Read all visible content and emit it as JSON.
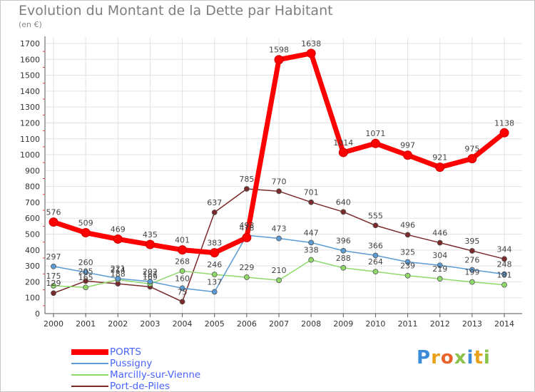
{
  "chart_data": {
    "type": "line",
    "title": "Evolution du Montant de la Dette par Habitant",
    "subtitle": "(en €)",
    "x": [
      "2000",
      "2001",
      "2002",
      "2003",
      "2004",
      "2005",
      "2006",
      "2007",
      "2008",
      "2009",
      "2010",
      "2011",
      "2012",
      "2013",
      "2014"
    ],
    "ylim": [
      0,
      1700
    ],
    "yticks": [
      0,
      100,
      200,
      300,
      400,
      500,
      600,
      700,
      800,
      900,
      1000,
      1100,
      1200,
      1300,
      1400,
      1500,
      1600,
      1700
    ],
    "grid": true,
    "legend_position": "bottom-left",
    "series": [
      {
        "name": "PORTS",
        "color": "#ff0000",
        "values": [
          576,
          509,
          469,
          435,
          401,
          383,
          478,
          1598,
          1638,
          1014,
          1071,
          997,
          921,
          975,
          1138
        ]
      },
      {
        "name": "Pussigny",
        "color": "#5b9bd5",
        "values": [
          297,
          260,
          221,
          202,
          160,
          137,
          493,
          473,
          447,
          396,
          366,
          325,
          304,
          276,
          248
        ]
      },
      {
        "name": "Marcilly-sur-Vienne",
        "color": "#8fd96b",
        "values": [
          175,
          165,
          214,
          187,
          268,
          246,
          229,
          210,
          338,
          288,
          264,
          239,
          219,
          199,
          181
        ]
      },
      {
        "name": "Port-de-Piles",
        "color": "#7a2a2a",
        "values": [
          129,
          205,
          188,
          169,
          75,
          637,
          785,
          770,
          701,
          640,
          555,
          496,
          446,
          395,
          344
        ]
      }
    ]
  },
  "logo": {
    "text": "Proxiti"
  }
}
